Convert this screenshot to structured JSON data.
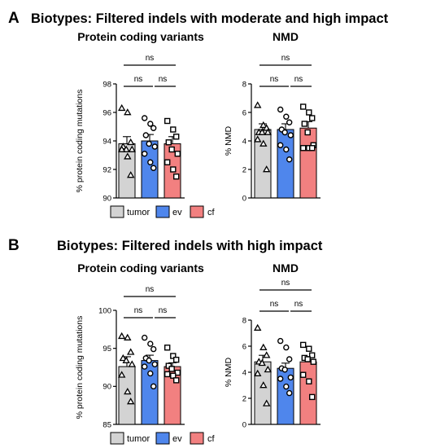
{
  "panels": [
    {
      "letter": "A",
      "title": "Biotypes: Filtered indels with moderate and high impact"
    },
    {
      "letter": "B",
      "title": "Biotypes: Filtered indels with high impact"
    }
  ],
  "legend": [
    {
      "label": "tumor",
      "color": "#d3d3d3"
    },
    {
      "label": "ev",
      "color": "#4f86ec"
    },
    {
      "label": "cf",
      "color": "#f28080"
    }
  ],
  "colors": {
    "tumor": "#d3d3d3",
    "ev": "#4f86ec",
    "cf": "#f28080"
  },
  "markers": {
    "tumor": "triangle-open",
    "ev": "circle-open",
    "cf": "square-open"
  },
  "significance": {
    "label": "ns"
  },
  "chart_data": [
    {
      "type": "bar",
      "panel": "A",
      "title": "Protein coding variants",
      "xlabel": "",
      "ylabel": "% protein coding mutations",
      "ylim": [
        90,
        98
      ],
      "yticks": [
        90,
        92,
        94,
        96,
        98
      ],
      "categories": [
        "tumor",
        "ev",
        "cf"
      ],
      "means": [
        93.8,
        94.0,
        93.8
      ],
      "errors": [
        0.5,
        0.45,
        0.5
      ],
      "points": [
        [
          96.3,
          96.0,
          93.9,
          93.6,
          93.4,
          93.4,
          93.4,
          92.9,
          91.6
        ],
        [
          95.6,
          95.2,
          94.9,
          94.4,
          93.8,
          93.6,
          93.1,
          92.5,
          92.1
        ],
        [
          95.4,
          94.8,
          94.3,
          93.9,
          93.4,
          93.1,
          92.5,
          92.0,
          91.5
        ]
      ],
      "comparisons": [
        "tumor-ev: ns",
        "ev-cf: ns",
        "tumor-cf: ns"
      ]
    },
    {
      "type": "bar",
      "panel": "A",
      "title": "NMD",
      "xlabel": "",
      "ylabel": "% NMD",
      "ylim": [
        0,
        8
      ],
      "yticks": [
        0,
        2,
        4,
        6,
        8
      ],
      "categories": [
        "tumor",
        "ev",
        "cf"
      ],
      "means": [
        4.8,
        4.8,
        4.9
      ],
      "errors": [
        0.4,
        0.4,
        0.45
      ],
      "points": [
        [
          6.5,
          5.1,
          4.9,
          4.6,
          4.6,
          4.6,
          4.1,
          3.8,
          2.0
        ],
        [
          6.2,
          5.7,
          5.3,
          4.8,
          4.6,
          4.4,
          3.7,
          3.4,
          2.7
        ],
        [
          6.4,
          6.0,
          5.6,
          5.2,
          4.6,
          3.7,
          3.5,
          3.5,
          3.5
        ]
      ],
      "comparisons": [
        "tumor-ev: ns",
        "ev-cf: ns",
        "tumor-cf: ns"
      ]
    },
    {
      "type": "bar",
      "panel": "B",
      "title": "Protein coding variants",
      "xlabel": "",
      "ylabel": "% protein coding mutations",
      "ylim": [
        85,
        100
      ],
      "yticks": [
        85,
        90,
        95,
        100
      ],
      "categories": [
        "tumor",
        "ev",
        "cf"
      ],
      "means": [
        92.6,
        93.4,
        92.6
      ],
      "errors": [
        1.3,
        0.7,
        0.5
      ],
      "points": [
        [
          96.6,
          96.4,
          94.5,
          93.7,
          93.4,
          92.9,
          91.5,
          89.3,
          88.0
        ],
        [
          96.4,
          95.6,
          94.9,
          93.7,
          93.4,
          92.9,
          92.6,
          91.7,
          90.0
        ],
        [
          95.1,
          94.0,
          93.5,
          92.7,
          92.3,
          91.8,
          91.6,
          91.4,
          90.8
        ]
      ],
      "comparisons": [
        "tumor-ev: ns",
        "ev-cf: ns",
        "tumor-cf: ns"
      ]
    },
    {
      "type": "bar",
      "panel": "B",
      "title": "NMD",
      "xlabel": "",
      "ylabel": "% NMD",
      "ylim": [
        0,
        8
      ],
      "yticks": [
        0,
        2,
        4,
        6,
        8
      ],
      "categories": [
        "tumor",
        "ev",
        "cf"
      ],
      "means": [
        4.8,
        4.3,
        4.8
      ],
      "errors": [
        0.5,
        0.4,
        0.4
      ],
      "points": [
        [
          7.4,
          5.9,
          5.3,
          4.8,
          4.7,
          4.2,
          3.9,
          3.0,
          1.6
        ],
        [
          6.4,
          5.9,
          5.0,
          4.3,
          4.2,
          3.6,
          3.5,
          2.9,
          2.4
        ],
        [
          6.1,
          5.8,
          5.3,
          5.1,
          5.0,
          4.8,
          3.8,
          3.3,
          2.1
        ]
      ],
      "comparisons": [
        "tumor-ev: ns",
        "ev-cf: ns",
        "tumor-cf: ns"
      ]
    }
  ]
}
